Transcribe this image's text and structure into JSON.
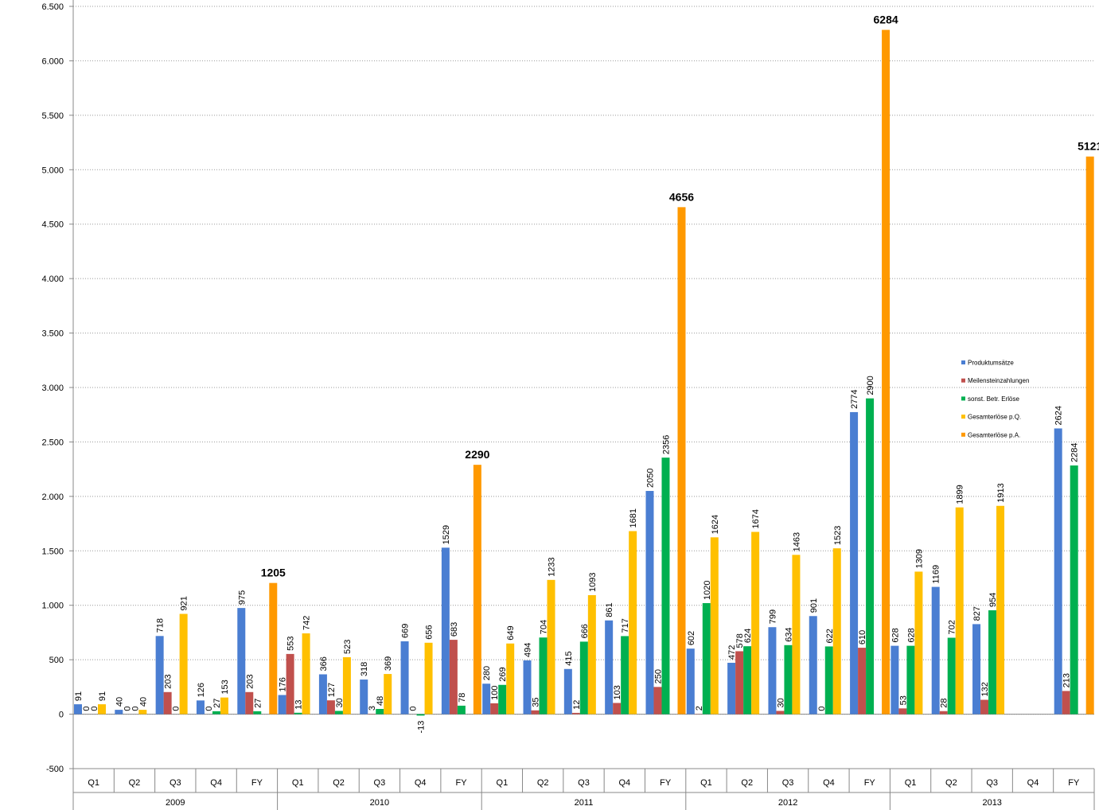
{
  "chart_data": {
    "type": "bar",
    "categories": [
      "Q1",
      "Q2",
      "Q3",
      "Q4",
      "FY",
      "Q1",
      "Q2",
      "Q3",
      "Q4",
      "FY",
      "Q1",
      "Q2",
      "Q3",
      "Q4",
      "FY",
      "Q1",
      "Q2",
      "Q3",
      "Q4",
      "FY",
      "Q1",
      "Q2",
      "Q3",
      "Q4",
      "FY"
    ],
    "groups": [
      "2009",
      "2010",
      "2011",
      "2012",
      "2013"
    ],
    "series": [
      {
        "name": "Produktumsätze",
        "color": "#4a7ed2",
        "values": [
          91,
          40,
          718,
          126,
          975,
          176,
          366,
          318,
          669,
          1529,
          280,
          494,
          415,
          861,
          2050,
          602,
          472,
          799,
          901,
          2774,
          628,
          1169,
          827,
          null,
          2624
        ]
      },
      {
        "name": "Meilensteinzahlungen",
        "color": "#c0504d",
        "values": [
          0,
          0,
          203,
          0,
          203,
          553,
          127,
          3,
          0,
          683,
          100,
          35,
          12,
          103,
          250,
          2,
          578,
          30,
          0,
          610,
          53,
          28,
          132,
          null,
          213
        ]
      },
      {
        "name": "sonst. Betr. Erlöse",
        "color": "#00b050",
        "values": [
          0,
          0,
          0,
          27,
          27,
          13,
          30,
          48,
          -13,
          78,
          269,
          704,
          666,
          717,
          2356,
          1020,
          624,
          634,
          622,
          2900,
          628,
          702,
          954,
          null,
          2284
        ]
      },
      {
        "name": "Gesamterlöse   p.Q.",
        "color": "#ffc000",
        "values": [
          91,
          40,
          921,
          153,
          null,
          742,
          523,
          369,
          656,
          null,
          649,
          1233,
          1093,
          1681,
          null,
          1624,
          1674,
          1463,
          1523,
          null,
          1309,
          1899,
          1913,
          null,
          null
        ]
      },
      {
        "name": "Gesamterlöse   p.A.",
        "color": "#ff9900",
        "values": [
          null,
          null,
          null,
          null,
          1205,
          null,
          null,
          null,
          null,
          2290,
          null,
          null,
          null,
          null,
          4656,
          null,
          null,
          null,
          null,
          6284,
          null,
          null,
          null,
          null,
          5121
        ]
      }
    ],
    "ylim": [
      -500,
      6500
    ],
    "yticks": [
      -500,
      0,
      500,
      {
        "value": 1000,
        "label": "1.000"
      },
      {
        "value": 1500,
        "label": "1.500"
      },
      {
        "value": 2000,
        "label": "2.000"
      },
      {
        "value": 2500,
        "label": "2.500"
      },
      {
        "value": 3000,
        "label": "3.000"
      },
      {
        "value": 3500,
        "label": "3.500"
      },
      {
        "value": 4000,
        "label": "4.000"
      },
      {
        "value": 4500,
        "label": "4.500"
      },
      {
        "value": 5000,
        "label": "5.000"
      },
      {
        "value": 5500,
        "label": "5.500"
      },
      {
        "value": 6000,
        "label": "6.000"
      },
      {
        "value": 6500,
        "label": "6.500"
      }
    ],
    "grid": true
  }
}
